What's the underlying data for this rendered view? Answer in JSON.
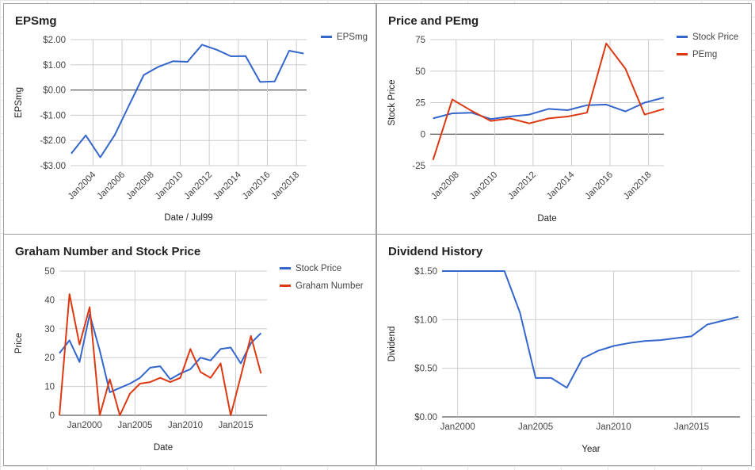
{
  "colors": {
    "blue": "#3366cc",
    "red": "#dc3912",
    "grid": "#cccccc",
    "zero": "#333333",
    "axis_text": "#444444"
  },
  "chart_data": [
    {
      "type": "line",
      "title": "EPSmg",
      "xlabel": "Date / Jul99",
      "ylabel": "EPSmg",
      "ylim": [
        -3,
        2
      ],
      "yticks": [
        {
          "v": 2,
          "label": "$2.00"
        },
        {
          "v": 1,
          "label": "$1.00"
        },
        {
          "v": 0,
          "label": "$0.00"
        },
        {
          "v": -1,
          "label": "-$1.00"
        },
        {
          "v": -2,
          "label": "-$2.00"
        },
        {
          "v": -3,
          "label": "-$3.00"
        }
      ],
      "xticks": [
        {
          "v": 2004,
          "label": "Jan2004"
        },
        {
          "v": 2006,
          "label": "Jan2006"
        },
        {
          "v": 2008,
          "label": "Jan2008"
        },
        {
          "v": 2010,
          "label": "Jan2010"
        },
        {
          "v": 2012,
          "label": "Jan2012"
        },
        {
          "v": 2014,
          "label": "Jan2014"
        },
        {
          "v": 2016,
          "label": "Jan2016"
        },
        {
          "v": 2018,
          "label": "Jan2018"
        }
      ],
      "x_labels_rotated": true,
      "grid": true,
      "legend_position": "right",
      "series": [
        {
          "name": "EPSmg",
          "color": "#3366cc",
          "x": [
            2002.5,
            2003.5,
            2004.5,
            2005.5,
            2006.5,
            2007.5,
            2008.5,
            2009.5,
            2010.5,
            2011.5,
            2012.5,
            2013.5,
            2014.5,
            2015.5,
            2016.5,
            2017.5,
            2018.5
          ],
          "values": [
            -2.52,
            -1.8,
            -2.67,
            -1.78,
            -0.58,
            0.6,
            0.92,
            1.14,
            1.12,
            1.8,
            1.6,
            1.34,
            1.35,
            0.32,
            0.34,
            1.56,
            1.45
          ]
        }
      ]
    },
    {
      "type": "line",
      "title": "Price and PEmg",
      "xlabel": "Date",
      "ylabel": "Stock Price",
      "ylim": [
        -25,
        75
      ],
      "yticks": [
        {
          "v": 75,
          "label": "75"
        },
        {
          "v": 50,
          "label": "50"
        },
        {
          "v": 25,
          "label": "25"
        },
        {
          "v": 0,
          "label": "0"
        },
        {
          "v": -25,
          "label": "-25"
        }
      ],
      "xticks": [
        {
          "v": 2008,
          "label": "Jan2008"
        },
        {
          "v": 2010,
          "label": "Jan2010"
        },
        {
          "v": 2012,
          "label": "Jan2012"
        },
        {
          "v": 2014,
          "label": "Jan2014"
        },
        {
          "v": 2016,
          "label": "Jan2016"
        },
        {
          "v": 2018,
          "label": "Jan2018"
        }
      ],
      "x_labels_rotated": true,
      "grid": true,
      "legend_position": "right",
      "series": [
        {
          "name": "Stock Price",
          "color": "#3366cc",
          "x": [
            2006.8,
            2007.8,
            2008.8,
            2009.8,
            2010.8,
            2011.8,
            2012.8,
            2013.8,
            2014.8,
            2015.8,
            2016.8,
            2017.8,
            2018.8
          ],
          "values": [
            12.5,
            16.5,
            17,
            12,
            14,
            15.5,
            20,
            19,
            23,
            23.5,
            18,
            25,
            29
          ]
        },
        {
          "name": "PEmg",
          "color": "#dc3912",
          "x": [
            2006.8,
            2007.8,
            2008.8,
            2009.8,
            2010.8,
            2011.8,
            2012.8,
            2013.8,
            2014.8,
            2015.8,
            2016.8,
            2017.8,
            2018.8
          ],
          "values": [
            -20.5,
            27.5,
            18.5,
            10.5,
            12.5,
            8.5,
            12.5,
            14,
            17,
            72,
            52,
            15.5,
            20
          ]
        }
      ]
    },
    {
      "type": "line",
      "title": "Graham Number and Stock Price",
      "xlabel": "Date",
      "ylabel": "Price",
      "ylim": [
        0,
        50
      ],
      "yticks": [
        {
          "v": 50,
          "label": "50"
        },
        {
          "v": 40,
          "label": "40"
        },
        {
          "v": 30,
          "label": "30"
        },
        {
          "v": 20,
          "label": "20"
        },
        {
          "v": 10,
          "label": "10"
        },
        {
          "v": 0,
          "label": "0"
        }
      ],
      "xticks": [
        {
          "v": 2000,
          "label": "Jan2000"
        },
        {
          "v": 2005,
          "label": "Jan2005"
        },
        {
          "v": 2010,
          "label": "Jan2010"
        },
        {
          "v": 2015,
          "label": "Jan2015"
        }
      ],
      "x_labels_rotated": false,
      "grid": true,
      "legend_position": "right",
      "series": [
        {
          "name": "Stock Price",
          "color": "#3366cc",
          "x": [
            1997.5,
            1998.5,
            1999.5,
            2000.5,
            2001.5,
            2002.5,
            2003.5,
            2004.5,
            2005.5,
            2006.5,
            2007.5,
            2008.5,
            2009.5,
            2010.5,
            2011.5,
            2012.5,
            2013.5,
            2014.5,
            2015.5,
            2016.5,
            2017.5,
            2018.5
          ],
          "values": [
            21.5,
            26,
            18.5,
            35,
            22.5,
            8,
            9.5,
            11,
            13,
            16.5,
            17,
            12.5,
            14.5,
            16,
            20,
            19,
            23,
            23.5,
            18,
            25,
            28.5,
            null
          ]
        },
        {
          "name": "Graham Number",
          "color": "#dc3912",
          "x": [
            1997.5,
            1998.5,
            1999.5,
            2000.5,
            2001.5,
            2002.5,
            2003.5,
            2004.5,
            2005.5,
            2006.5,
            2007.5,
            2008.5,
            2009.5,
            2010.5,
            2011.5,
            2012.5,
            2013.5,
            2014.5,
            2015.5,
            2016.5,
            2017.5,
            2018.5
          ],
          "values": [
            0,
            42,
            24.5,
            37.5,
            0,
            12.5,
            0,
            7.5,
            11,
            11.5,
            13,
            11.5,
            13,
            23,
            15,
            13,
            18,
            0,
            13.5,
            27.5,
            14.5,
            null
          ]
        }
      ]
    },
    {
      "type": "line",
      "title": "Dividend History",
      "xlabel": "Year",
      "ylabel": "Dividend",
      "ylim": [
        0,
        1.5
      ],
      "yticks": [
        {
          "v": 1.5,
          "label": "$1.50"
        },
        {
          "v": 1,
          "label": "$1.00"
        },
        {
          "v": 0.5,
          "label": "$0.50"
        },
        {
          "v": 0,
          "label": "$0.00"
        }
      ],
      "xticks": [
        {
          "v": 2000,
          "label": "Jan2000"
        },
        {
          "v": 2005,
          "label": "Jan2005"
        },
        {
          "v": 2010,
          "label": "Jan2010"
        },
        {
          "v": 2015,
          "label": "Jan2015"
        }
      ],
      "x_labels_rotated": false,
      "grid": true,
      "legend_position": "none",
      "series": [
        {
          "name": "",
          "color": "#3366cc",
          "x": [
            1999,
            2000,
            2001,
            2002,
            2003,
            2004,
            2005,
            2006,
            2007,
            2008,
            2009,
            2010,
            2011,
            2012,
            2013,
            2014,
            2015,
            2016,
            2017,
            2018
          ],
          "values": [
            1.5,
            1.5,
            1.5,
            1.5,
            1.5,
            1.07,
            0.4,
            0.4,
            0.3,
            0.6,
            0.68,
            0.73,
            0.76,
            0.78,
            0.79,
            0.81,
            0.83,
            0.95,
            0.99,
            1.03
          ]
        }
      ]
    }
  ]
}
